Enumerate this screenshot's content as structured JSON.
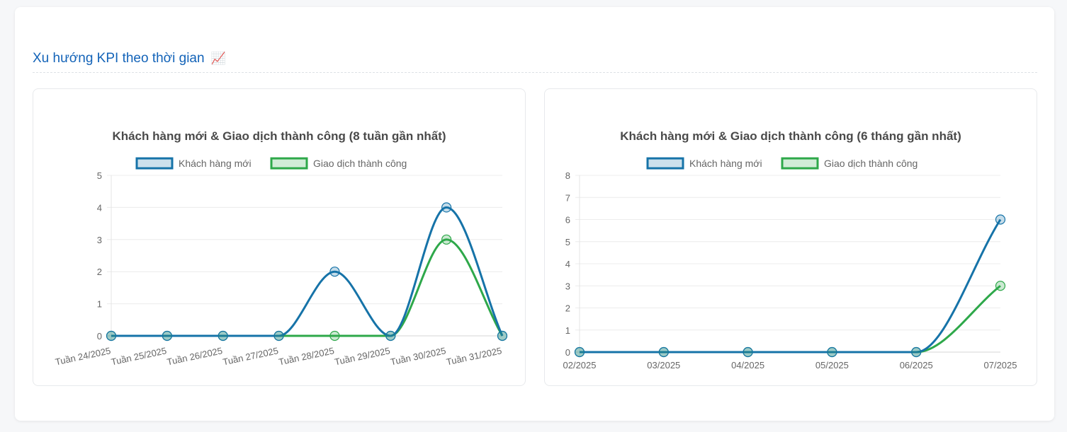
{
  "section": {
    "title": "Xu hướng KPI theo thời gian",
    "emoji": "📈"
  },
  "colors": {
    "khach_hang_moi": "#1673a8",
    "giao_dich": "#2ea84a"
  },
  "chart_data": [
    {
      "type": "line",
      "title": "Khách hàng mới & Giao dịch thành công (8 tuần gần nhất)",
      "legend_position": "top",
      "categories": [
        "Tuần 24/2025",
        "Tuần 25/2025",
        "Tuần 26/2025",
        "Tuần 27/2025",
        "Tuần 28/2025",
        "Tuần 29/2025",
        "Tuần 30/2025",
        "Tuần 31/2025"
      ],
      "series": [
        {
          "name": "Khách hàng mới",
          "values": [
            0,
            0,
            0,
            0,
            2,
            0,
            4,
            0
          ]
        },
        {
          "name": "Giao dịch thành công",
          "values": [
            0,
            0,
            0,
            0,
            0,
            0,
            3,
            0
          ]
        }
      ],
      "ylim": [
        0,
        5
      ],
      "yticks": [
        "0",
        "1",
        "2",
        "3",
        "4",
        "5"
      ],
      "grid": true,
      "rotated_x_labels": true
    },
    {
      "type": "line",
      "title": "Khách hàng mới & Giao dịch thành công (6 tháng gần nhất)",
      "legend_position": "top",
      "categories": [
        "02/2025",
        "03/2025",
        "04/2025",
        "05/2025",
        "06/2025",
        "07/2025"
      ],
      "series": [
        {
          "name": "Khách hàng mới",
          "values": [
            0,
            0,
            0,
            0,
            0,
            6
          ]
        },
        {
          "name": "Giao dịch thành công",
          "values": [
            0,
            0,
            0,
            0,
            0,
            3
          ]
        }
      ],
      "ylim": [
        0,
        8
      ],
      "yticks": [
        "0",
        "1",
        "2",
        "3",
        "4",
        "5",
        "6",
        "7",
        "8"
      ],
      "grid": true,
      "rotated_x_labels": false
    }
  ]
}
